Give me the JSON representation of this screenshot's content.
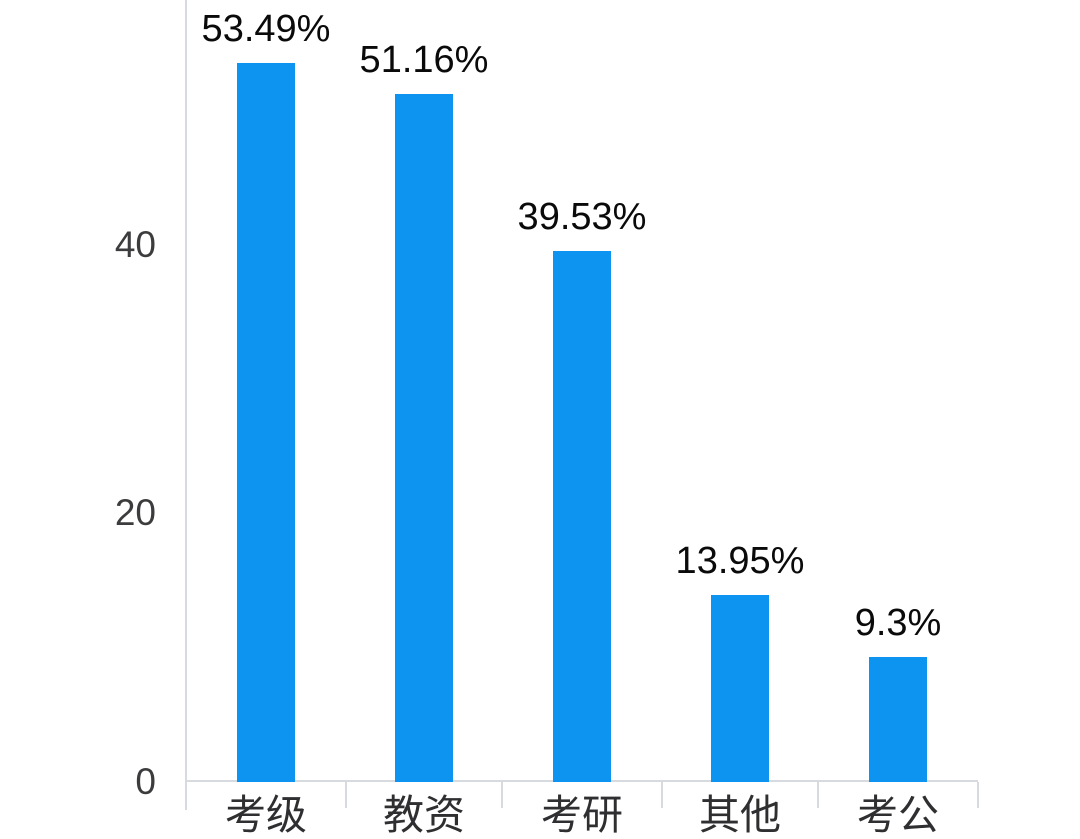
{
  "chart_data": {
    "type": "bar",
    "title": "",
    "xlabel": "",
    "ylabel": "",
    "categories": [
      "考级",
      "教资",
      "考研",
      "其他",
      "考公"
    ],
    "values": [
      53.49,
      51.16,
      39.53,
      13.95,
      9.3
    ],
    "data_labels": [
      "53.49%",
      "51.16%",
      "39.53%",
      "13.95%",
      "9.3%"
    ],
    "y_ticks": [
      "0",
      "20",
      "40"
    ],
    "ylim": [
      0,
      58.2
    ],
    "grid": false,
    "legend": false,
    "layout_hints": {
      "bars_vertical": true,
      "data_labels_above_bars": true,
      "x_labels_clipped_at_bottom": true
    },
    "colors": {
      "bar": "#0d94f0",
      "axis": "#d7dbdf",
      "data_label": "#0a0a0a",
      "tick_label": "#3c3c3e"
    }
  }
}
